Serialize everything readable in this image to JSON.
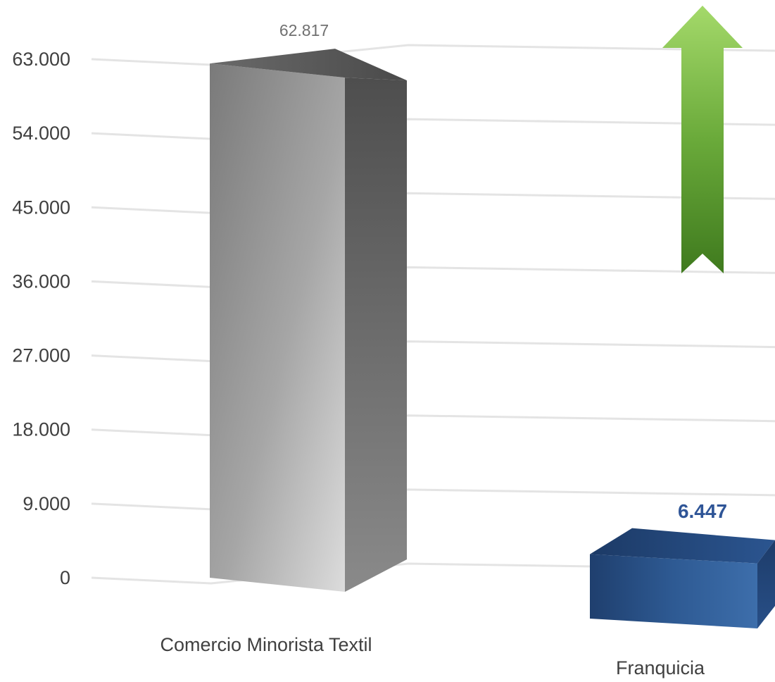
{
  "chart_data": {
    "type": "bar",
    "style": "3d-column",
    "categories": [
      "Comercio Minorista Textil",
      "Franquicia"
    ],
    "values": [
      62817,
      6447
    ],
    "value_labels": [
      "62.817",
      "6.447"
    ],
    "ylim": [
      0,
      63000
    ],
    "yticks": [
      "0",
      "9.000",
      "18.000",
      "27.000",
      "36.000",
      "45.000",
      "54.000",
      "63.000"
    ],
    "grid": true,
    "legend": "none",
    "title": "",
    "xlabel": "",
    "ylabel": "",
    "colors": {
      "bar_1": "#8a8a8a",
      "bar_2": "#2e5a93",
      "label_1": "#707070",
      "label_2": "#2f5597",
      "arrow": "#6aaa3a"
    },
    "annotation": {
      "shape": "up-arrow",
      "color": "#6aaa3a"
    }
  }
}
